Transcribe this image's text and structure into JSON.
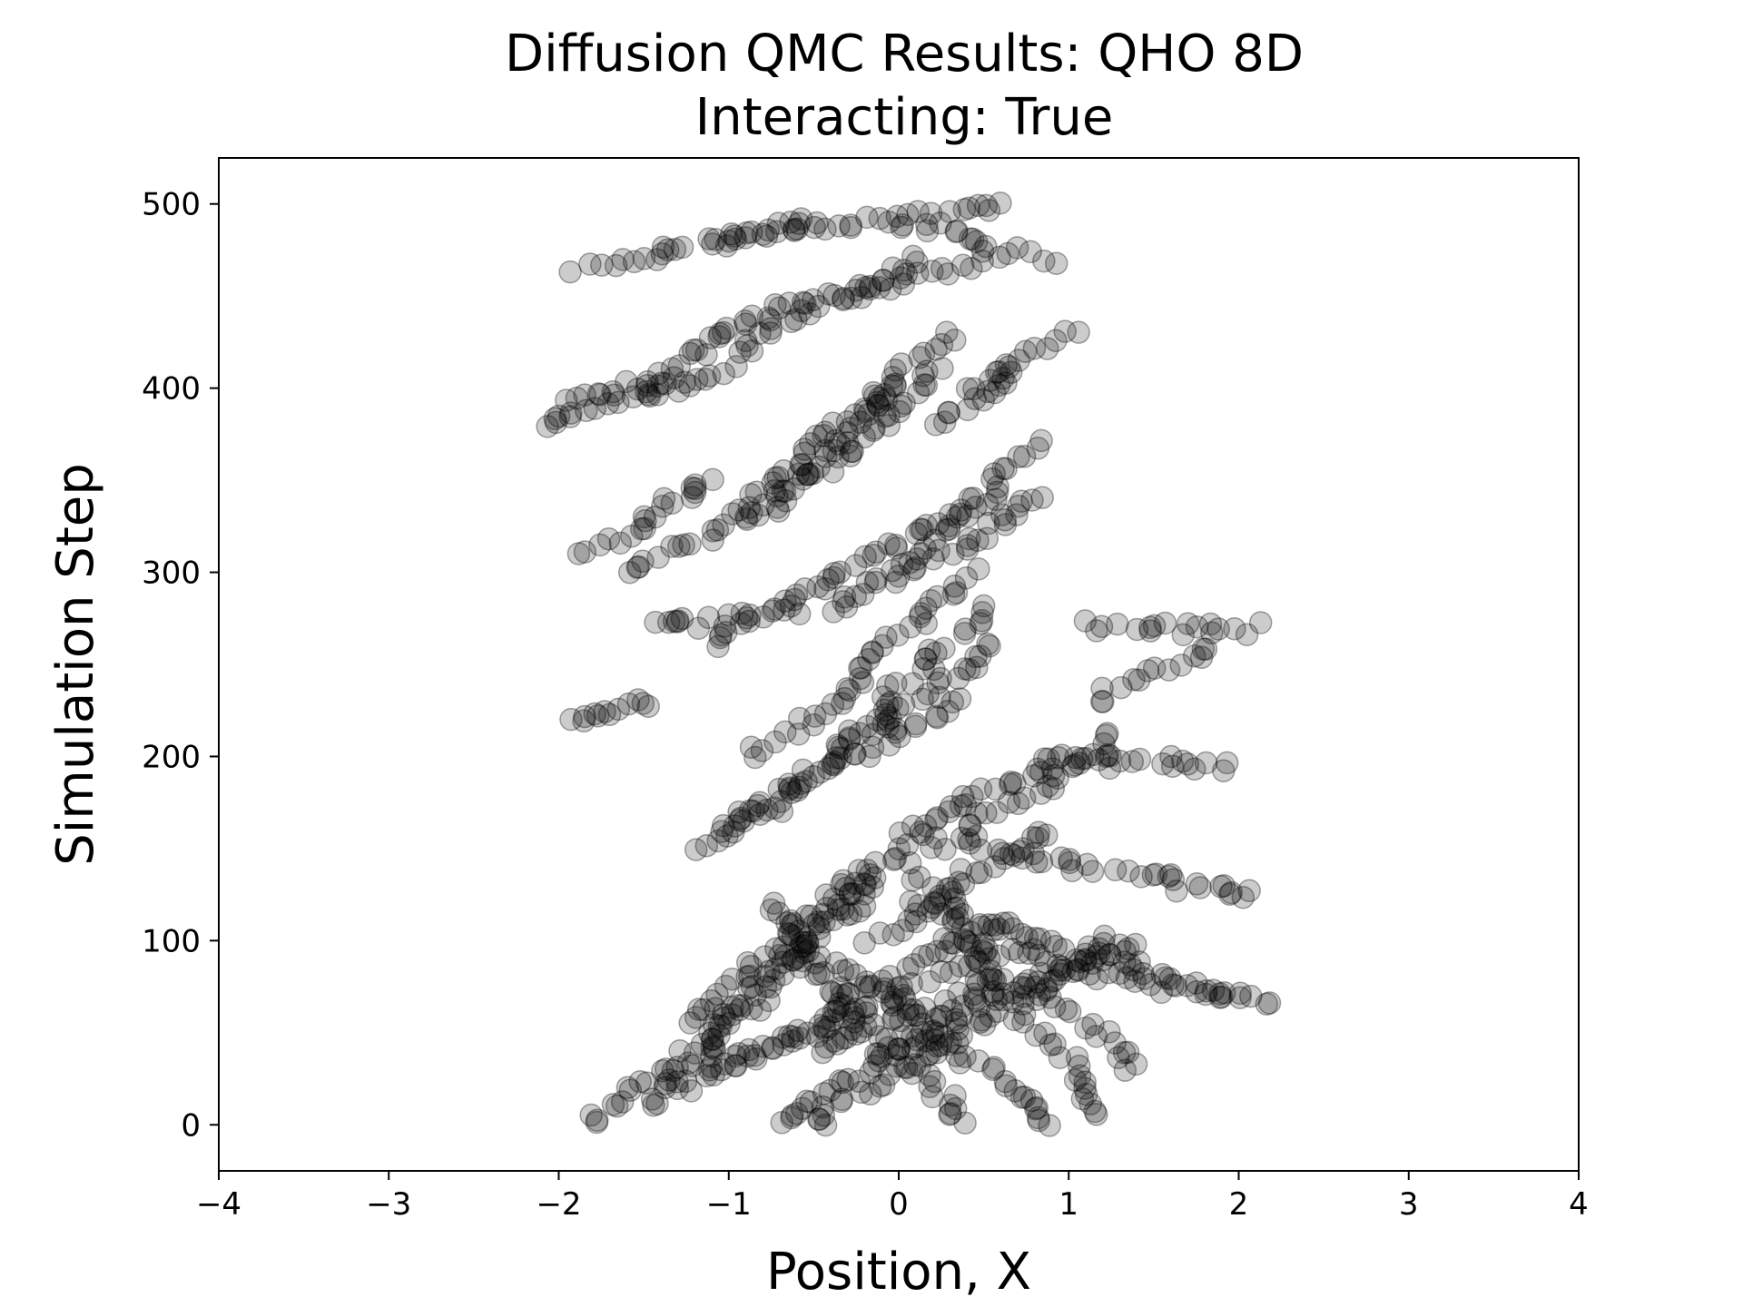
{
  "chart_data": {
    "type": "scatter",
    "title": "Diffusion QMC Results: QHO 8D",
    "subtitle": "Interacting: True",
    "xlabel": "Position, X",
    "ylabel": "Simulation Step",
    "xlim": [
      -4,
      4
    ],
    "ylim": [
      -25,
      525
    ],
    "xticks": [
      -4,
      -3,
      -2,
      -1,
      0,
      1,
      2,
      3,
      4
    ],
    "xtick_labels": [
      "−4",
      "−3",
      "−2",
      "−1",
      "0",
      "1",
      "2",
      "3",
      "4"
    ],
    "yticks": [
      0,
      100,
      200,
      300,
      400,
      500
    ],
    "ytick_labels": [
      "0",
      "100",
      "200",
      "300",
      "400",
      "500"
    ],
    "grid": false,
    "legend": "none",
    "marker": "circle",
    "marker_color": "#000000",
    "marker_alpha": 0.2,
    "series": [
      {
        "walkers": [
          {
            "x0": -1.8,
            "x1": -0.2,
            "y0": 0,
            "y1": 130
          },
          {
            "x0": -0.5,
            "x1": 1.2,
            "y0": 0,
            "y1": 100
          },
          {
            "x0": -1.5,
            "x1": 0.2,
            "y0": 10,
            "y1": 160
          },
          {
            "x0": 0.9,
            "x1": -0.4,
            "y0": 0,
            "y1": 90
          },
          {
            "x0": 1.2,
            "x1": 0.1,
            "y0": 5,
            "y1": 140
          },
          {
            "x0": -1.3,
            "x1": 0.5,
            "y0": 20,
            "y1": 90
          },
          {
            "x0": -1.2,
            "x1": -0.2,
            "y0": 55,
            "y1": 140
          },
          {
            "x0": -0.7,
            "x1": 0.4,
            "y0": 0,
            "y1": 60
          },
          {
            "x0": -1.1,
            "x1": 0.6,
            "y0": 30,
            "y1": 110
          },
          {
            "x0": 0.4,
            "x1": -0.8,
            "y0": 0,
            "y1": 120
          },
          {
            "x0": -0.1,
            "x1": 1.4,
            "y0": 40,
            "y1": 100
          },
          {
            "x0": 0.3,
            "x1": 2.2,
            "y0": 100,
            "y1": 65
          },
          {
            "x0": 0.1,
            "x1": 1.9,
            "y0": 120,
            "y1": 70
          },
          {
            "x0": 0.4,
            "x1": 2.1,
            "y0": 150,
            "y1": 125
          },
          {
            "x0": 0.8,
            "x1": 1.4,
            "y0": 80,
            "y1": 30
          },
          {
            "x0": -0.2,
            "x1": 0.9,
            "y0": 100,
            "y1": 160
          },
          {
            "x0": -1.2,
            "x1": 0.4,
            "y0": 150,
            "y1": 230
          },
          {
            "x0": -1.0,
            "x1": 0.6,
            "y0": 160,
            "y1": 260
          },
          {
            "x0": 0.2,
            "x1": 1.3,
            "y0": 150,
            "y1": 210
          },
          {
            "x0": 0.9,
            "x1": 2.0,
            "y0": 200,
            "y1": 195
          },
          {
            "x0": 1.2,
            "x1": 1.8,
            "y0": 230,
            "y1": 260
          },
          {
            "x0": 1.1,
            "x1": 2.1,
            "y0": 270,
            "y1": 270
          },
          {
            "x0": -0.8,
            "x1": 0.4,
            "y0": 200,
            "y1": 300
          },
          {
            "x0": -1.1,
            "x1": 0.5,
            "y0": 260,
            "y1": 340
          },
          {
            "x0": -1.9,
            "x1": -1.5,
            "y0": 220,
            "y1": 230
          },
          {
            "x0": -1.4,
            "x1": -0.6,
            "y0": 270,
            "y1": 280
          },
          {
            "x0": -1.9,
            "x1": -1.0,
            "y0": 310,
            "y1": 350
          },
          {
            "x0": -1.6,
            "x1": -0.7,
            "y0": 300,
            "y1": 340
          },
          {
            "x0": -0.4,
            "x1": 0.9,
            "y0": 280,
            "y1": 340
          },
          {
            "x0": 0.0,
            "x1": 0.8,
            "y0": 300,
            "y1": 370
          },
          {
            "x0": -0.7,
            "x1": 0.3,
            "y0": 340,
            "y1": 410
          },
          {
            "x0": -1.0,
            "x1": 0.0,
            "y0": 330,
            "y1": 400
          },
          {
            "x0": -2.1,
            "x1": -1.0,
            "y0": 380,
            "y1": 410
          },
          {
            "x0": -1.9,
            "x1": -1.3,
            "y0": 395,
            "y1": 400
          },
          {
            "x0": -1.6,
            "x1": -0.8,
            "y0": 400,
            "y1": 440
          },
          {
            "x0": 0.4,
            "x1": 1.0,
            "y0": 400,
            "y1": 430
          },
          {
            "x0": 0.2,
            "x1": 0.7,
            "y0": 380,
            "y1": 410
          },
          {
            "x0": -1.0,
            "x1": 0.1,
            "y0": 420,
            "y1": 470
          },
          {
            "x0": -1.9,
            "x1": -0.5,
            "y0": 465,
            "y1": 490
          },
          {
            "x0": -0.8,
            "x1": 0.5,
            "y0": 440,
            "y1": 470
          },
          {
            "x0": -1.0,
            "x1": 0.6,
            "y0": 480,
            "y1": 500
          },
          {
            "x0": 0.0,
            "x1": 0.9,
            "y0": 490,
            "y1": 470
          },
          {
            "x0": -0.6,
            "x1": 0.3,
            "y0": 350,
            "y1": 430
          },
          {
            "x0": -0.3,
            "x1": 0.5,
            "y0": 210,
            "y1": 280
          },
          {
            "x0": 0.0,
            "x1": 1.0,
            "y0": 160,
            "y1": 200
          },
          {
            "x0": -0.5,
            "x1": 0.6,
            "y0": 40,
            "y1": 80
          }
        ]
      }
    ]
  }
}
